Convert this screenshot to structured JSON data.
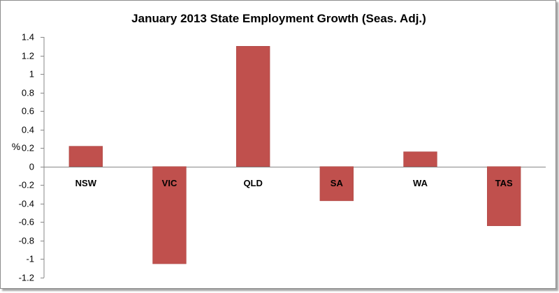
{
  "chart_data": {
    "type": "bar",
    "title": "January 2013 State Employment Growth (Seas. Adj.)",
    "ylabel": "%",
    "xlabel": "",
    "categories": [
      "NSW",
      "VIC",
      "QLD",
      "SA",
      "WA",
      "TAS"
    ],
    "values": [
      0.22,
      -1.05,
      1.3,
      -0.37,
      0.16,
      -0.64
    ],
    "ylim": [
      -1.2,
      1.4
    ],
    "yticks": [
      1.4,
      1.2,
      1,
      0.8,
      0.6,
      0.4,
      0.2,
      0,
      -0.2,
      -0.4,
      -0.6,
      -0.8,
      -1,
      -1.2
    ],
    "ytick_labels": [
      "1.4",
      "1.2",
      "1",
      "0.8",
      "0.6",
      "0.4",
      "0.2",
      "0",
      "-0.2",
      "-0.4",
      "-0.6",
      "-0.8",
      "-1",
      "-1.2"
    ],
    "grid": false,
    "legend": "none",
    "bar_color": "#C0504D"
  }
}
